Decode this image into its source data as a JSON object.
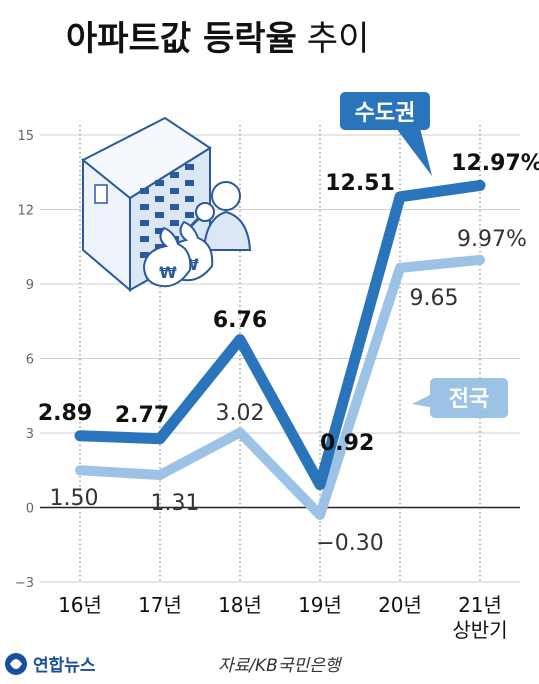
{
  "chart_data": {
    "type": "line",
    "title": "아파트값 등락율",
    "subtitle": "추이",
    "categories": [
      "16년",
      "17년",
      "18년",
      "19년",
      "20년",
      "21년 상반기"
    ],
    "category_lines": [
      [
        "16년"
      ],
      [
        "17년"
      ],
      [
        "18년"
      ],
      [
        "19년"
      ],
      [
        "20년"
      ],
      [
        "21년",
        "상반기"
      ]
    ],
    "ylim": [
      -3,
      15
    ],
    "yticks": [
      -3,
      0,
      3,
      6,
      9,
      12,
      15
    ],
    "grid": true,
    "series": [
      {
        "name": "수도권",
        "color": "#2a74bb",
        "values": [
          2.89,
          2.77,
          6.76,
          0.92,
          12.51,
          12.97
        ],
        "labels": [
          "2.89",
          "2.77",
          "6.76",
          "0.92",
          "12.51",
          "12.97%"
        ]
      },
      {
        "name": "전국",
        "color": "#9cc2e5",
        "values": [
          1.5,
          1.31,
          3.02,
          -0.3,
          9.65,
          9.97
        ],
        "labels": [
          "1.50",
          "1.31",
          "3.02",
          "−0.30",
          "9.65",
          "9.97%"
        ]
      }
    ]
  },
  "footer": {
    "logo": "연합뉴스",
    "source": "자료/KB국민은행"
  }
}
